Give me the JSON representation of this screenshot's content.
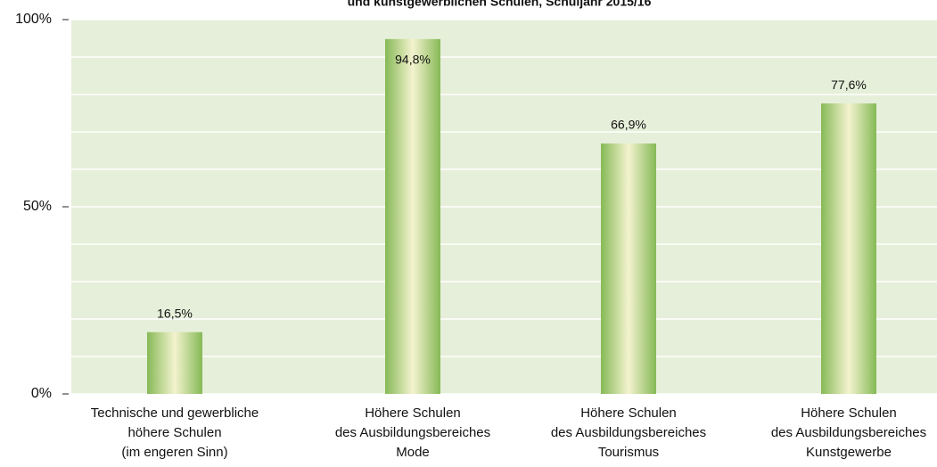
{
  "chart_data": {
    "type": "bar",
    "title": "und kunstgewerblichen Schulen, Schuljahr 2015/16",
    "categories": [
      [
        "Technische und gewerbliche",
        "höhere Schulen",
        "(im engeren Sinn)"
      ],
      [
        "Höhere Schulen",
        "des Ausbildungsbereiches",
        "Mode"
      ],
      [
        "Höhere Schulen",
        "des Ausbildungsbereiches",
        "Tourismus"
      ],
      [
        "Höhere Schulen",
        "des Ausbildungsbereiches",
        "Kunstgewerbe"
      ]
    ],
    "values": [
      16.5,
      94.8,
      66.9,
      77.6
    ],
    "value_labels": [
      "16,5%",
      "94,8%",
      "66,9%",
      "77,6%"
    ],
    "color": "#8dbf5a",
    "ylim": [
      0,
      100
    ],
    "yticks": [
      {
        "value": 0,
        "label": "0%"
      },
      {
        "value": 50,
        "label": "50%"
      },
      {
        "value": 100,
        "label": "100%"
      }
    ],
    "minor_yticks": [
      10,
      20,
      30,
      40,
      60,
      70,
      80,
      90
    ],
    "grid": true
  }
}
